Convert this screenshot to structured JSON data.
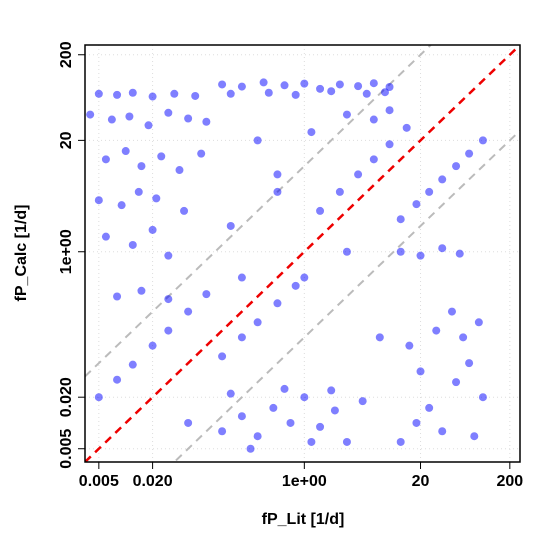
{
  "chart_data": {
    "type": "scatter",
    "xlabel": "fP_Lit [1/d]",
    "ylabel": "fP_Calc [1/d]",
    "xscale": "log",
    "yscale": "log",
    "grid": true,
    "xlim": [
      0.0035,
      260
    ],
    "ylim": [
      0.0035,
      260
    ],
    "xticks": [
      0.005,
      {
        "value": 0.02,
        "label": "0.020"
      },
      {
        "value": 1,
        "label": "1e+00"
      },
      20,
      200
    ],
    "yticks": [
      0.005,
      {
        "value": 0.02,
        "label": "0.020"
      },
      {
        "value": 1,
        "label": "1e+00"
      },
      20,
      200
    ],
    "color": "#0000ff",
    "ref_lines": [
      {
        "factor": 1,
        "color": "#ee0000"
      },
      {
        "factor": 10,
        "color": "#bbbbbb"
      },
      {
        "factor": 0.1,
        "color": "#bbbbbb"
      }
    ],
    "x": [
      0.005,
      0.008,
      0.012,
      0.02,
      0.035,
      0.06,
      0.004,
      0.007,
      0.011,
      0.018,
      0.03,
      0.05,
      0.08,
      0.006,
      0.01,
      0.015,
      0.025,
      0.04,
      0.07,
      0.005,
      0.009,
      0.014,
      0.022,
      0.045,
      0.006,
      0.012,
      0.02,
      0.03,
      0.008,
      0.015,
      0.03,
      0.12,
      0.2,
      0.35,
      0.6,
      1,
      1.5,
      2.5,
      4,
      6,
      9,
      0.15,
      0.4,
      0.8,
      2,
      5,
      8,
      3,
      6,
      9,
      1.2,
      0.3,
      0.5,
      0.005,
      0.008,
      0.012,
      0.02,
      0.03,
      0.05,
      0.08,
      0.12,
      0.2,
      0.3,
      0.5,
      0.8,
      1.5,
      2.5,
      4,
      6,
      9,
      14,
      12,
      18,
      25,
      35,
      50,
      70,
      100,
      0.12,
      0.2,
      0.3,
      0.45,
      0.7,
      1,
      1.5,
      2.2,
      3,
      4.5,
      0.15,
      0.6,
      2,
      0.25,
      1.2,
      12,
      18,
      25,
      35,
      50,
      70,
      100,
      15,
      30,
      60,
      90,
      20,
      45,
      80,
      12,
      20,
      35,
      55,
      0.15,
      0.5,
      1,
      3,
      7,
      0.05,
      0.2
    ],
    "y": [
      70,
      68,
      72,
      65,
      70,
      66,
      40,
      35,
      38,
      30,
      42,
      36,
      33,
      12,
      15,
      10,
      13,
      9,
      14,
      4,
      3.5,
      5,
      4.2,
      3,
      1.5,
      1.2,
      1.8,
      0.9,
      0.3,
      0.35,
      0.28,
      90,
      85,
      95,
      88,
      92,
      80,
      90,
      86,
      93,
      84,
      70,
      72,
      68,
      75,
      70,
      73,
      40,
      35,
      45,
      25,
      20,
      8,
      0.02,
      0.032,
      0.048,
      0.08,
      0.12,
      0.2,
      0.32,
      0.06,
      0.1,
      0.15,
      0.25,
      0.4,
      3,
      5,
      8,
      12,
      18,
      28,
      2.4,
      3.6,
      5,
      7,
      10,
      14,
      20,
      0.008,
      0.012,
      0.007,
      0.015,
      0.01,
      0.02,
      0.009,
      0.014,
      0.006,
      0.018,
      0.022,
      0.025,
      0.024,
      0.005,
      0.006,
      0.006,
      0.01,
      0.015,
      0.008,
      0.03,
      0.05,
      0.02,
      0.08,
      0.12,
      0.1,
      0.15,
      0.04,
      0.2,
      0.007,
      1,
      0.9,
      1.1,
      0.95,
      2,
      5,
      0.5,
      1,
      0.1,
      0.01,
      0.5
    ]
  }
}
